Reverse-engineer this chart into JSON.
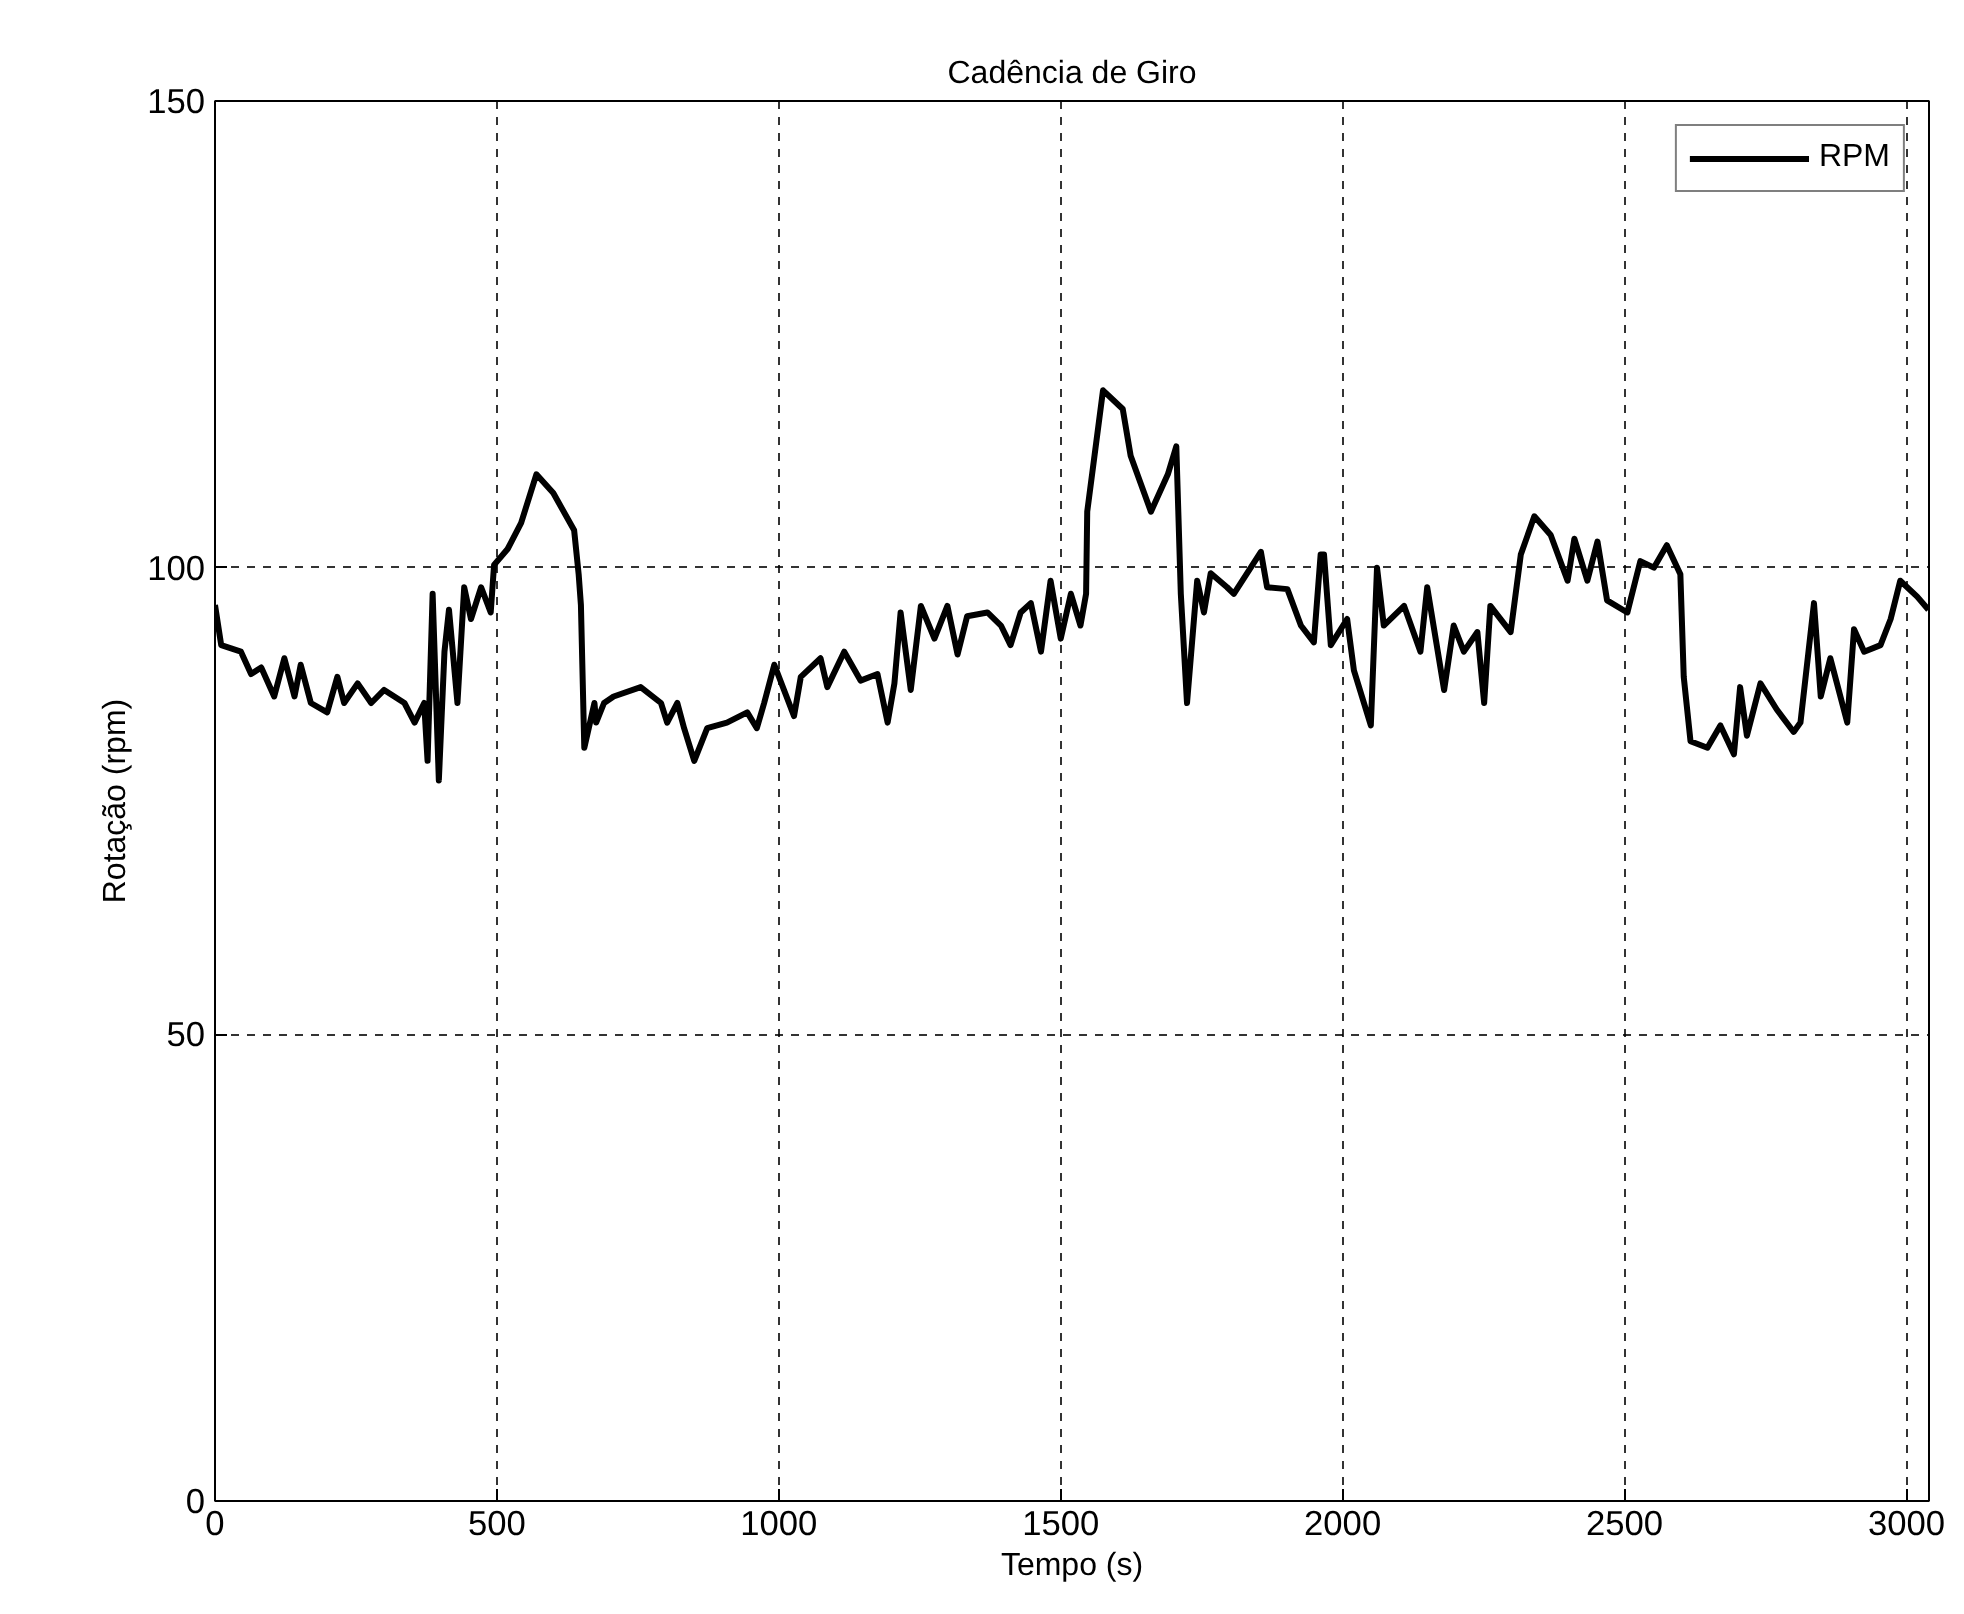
{
  "chart_data": {
    "type": "line",
    "title": "Cadência de Giro",
    "xlabel": "Tempo (s)",
    "ylabel": "Rotação (rpm)",
    "xlim": [
      0,
      3040
    ],
    "ylim": [
      0,
      150
    ],
    "xticks": [
      0,
      500,
      1000,
      1500,
      2000,
      2500,
      3000
    ],
    "yticks": [
      0,
      50,
      100,
      150
    ],
    "grid": true,
    "legend": "top right",
    "marker": "none",
    "line_style": "solid",
    "series": [
      {
        "name": "RPM",
        "color": "#000000",
        "x": [
          0,
          11,
          46,
          64,
          82,
          105,
          123,
          141,
          152,
          170,
          199,
          217,
          229,
          253,
          277,
          300,
          336,
          354,
          371,
          377,
          386,
          397,
          407,
          415,
          430,
          442,
          454,
          472,
          489,
          495,
          519,
          543,
          570,
          600,
          637,
          645,
          649,
          655,
          673,
          676,
          690,
          707,
          755,
          791,
          802,
          820,
          832,
          850,
          873,
          908,
          944,
          961,
          974,
          992,
          1027,
          1039,
          1074,
          1086,
          1116,
          1145,
          1175,
          1193,
          1205,
          1216,
          1234,
          1252,
          1276,
          1299,
          1317,
          1334,
          1370,
          1394,
          1411,
          1429,
          1447,
          1465,
          1482,
          1500,
          1518,
          1535,
          1545,
          1547,
          1575,
          1610,
          1624,
          1660,
          1690,
          1705,
          1713,
          1724,
          1742,
          1754,
          1766,
          1795,
          1807,
          1855,
          1866,
          1902,
          1926,
          1949,
          1961,
          1967,
          1979,
          2008,
          2020,
          2050,
          2061,
          2073,
          2109,
          2138,
          2150,
          2180,
          2197,
          2215,
          2239,
          2251,
          2262,
          2298,
          2316,
          2340,
          2369,
          2399,
          2411,
          2434,
          2452,
          2469,
          2505,
          2528,
          2552,
          2575,
          2599,
          2605,
          2617,
          2647,
          2670,
          2694,
          2705,
          2717,
          2741,
          2770,
          2800,
          2812,
          2836,
          2848,
          2865,
          2895,
          2907,
          2925,
          2954,
          2972,
          2989,
          3019,
          3039
        ],
        "values": [
          96,
          91.7,
          91,
          88.6,
          89.3,
          86.2,
          90.3,
          86.2,
          89.6,
          85.5,
          84.5,
          88.3,
          85.5,
          87.6,
          85.5,
          86.9,
          85.5,
          83.4,
          85.5,
          79.3,
          97.2,
          77.2,
          91,
          95.5,
          85.5,
          97.9,
          94.5,
          97.9,
          95.2,
          100.3,
          102,
          104.8,
          110,
          108,
          104,
          99.3,
          96,
          80.7,
          85.5,
          83.4,
          85.5,
          86.2,
          87.2,
          85.5,
          83.4,
          85.5,
          82.8,
          79.3,
          82.8,
          83.4,
          84.5,
          82.8,
          85.5,
          89.6,
          84.1,
          88.3,
          90.3,
          87.2,
          91,
          87.9,
          88.6,
          83.4,
          87.6,
          95.2,
          86.9,
          95.9,
          92.4,
          95.9,
          90.7,
          94.8,
          95.2,
          93.8,
          91.7,
          95.2,
          96.2,
          91,
          98.6,
          92.4,
          97.2,
          93.8,
          97.2,
          106,
          119,
          117,
          112,
          106,
          110,
          113,
          97.2,
          85.5,
          98.6,
          95.2,
          99.4,
          97.9,
          97.2,
          101.7,
          97.9,
          97.7,
          93.8,
          92,
          101.4,
          101.4,
          91.7,
          94.5,
          89,
          83.1,
          100,
          93.8,
          95.9,
          91,
          97.9,
          86.9,
          93.8,
          91,
          93.1,
          85.5,
          95.9,
          93.1,
          101.4,
          105.5,
          103.5,
          98.6,
          103.1,
          98.6,
          102.8,
          96.5,
          95.2,
          100.7,
          100,
          102.4,
          99.3,
          88.3,
          81.4,
          80.7,
          83.1,
          80,
          87.2,
          82,
          87.6,
          84.8,
          82.4,
          83.4,
          96.2,
          86.2,
          90.3,
          83.4,
          93.4,
          91,
          91.7,
          94.5,
          98.6,
          96.9,
          95.5
        ]
      }
    ]
  }
}
